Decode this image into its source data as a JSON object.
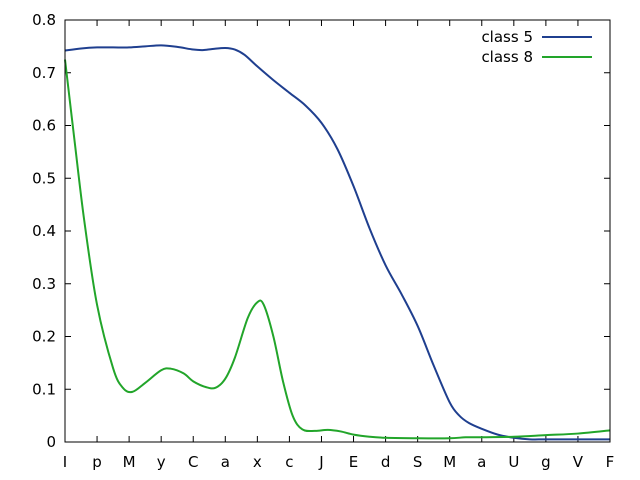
{
  "chart_data": {
    "type": "line",
    "title": "",
    "xlabel": "",
    "ylabel": "",
    "categories": [
      "I",
      "p",
      "M",
      "y",
      "C",
      "a",
      "x",
      "c",
      "J",
      "E",
      "d",
      "S",
      "M",
      "a",
      "U",
      "g",
      "V",
      "F"
    ],
    "y_ticks": [
      "0",
      "0.1",
      "0.2",
      "0.3",
      "0.4",
      "0.5",
      "0.6",
      "0.7",
      "0.8"
    ],
    "ylim": [
      0,
      0.8
    ],
    "grid": false,
    "legend_position": "top-right",
    "series": [
      {
        "name": "class 5",
        "color": "#1f3f8f",
        "values": [
          [
            0,
            0.742
          ],
          [
            0.5,
            0.746
          ],
          [
            1,
            0.748
          ],
          [
            1.5,
            0.748
          ],
          [
            2,
            0.748
          ],
          [
            2.5,
            0.75
          ],
          [
            3,
            0.752
          ],
          [
            3.5,
            0.749
          ],
          [
            4,
            0.744
          ],
          [
            4.3,
            0.743
          ],
          [
            4.6,
            0.745
          ],
          [
            5,
            0.747
          ],
          [
            5.3,
            0.744
          ],
          [
            5.6,
            0.734
          ],
          [
            6,
            0.712
          ],
          [
            6.5,
            0.686
          ],
          [
            7,
            0.662
          ],
          [
            7.5,
            0.638
          ],
          [
            8,
            0.605
          ],
          [
            8.5,
            0.555
          ],
          [
            9,
            0.485
          ],
          [
            9.5,
            0.405
          ],
          [
            10,
            0.335
          ],
          [
            10.5,
            0.28
          ],
          [
            11,
            0.22
          ],
          [
            11.5,
            0.145
          ],
          [
            12,
            0.075
          ],
          [
            12.3,
            0.05
          ],
          [
            12.6,
            0.036
          ],
          [
            13,
            0.025
          ],
          [
            13.5,
            0.014
          ],
          [
            14,
            0.008
          ],
          [
            14.5,
            0.005
          ],
          [
            15,
            0.005
          ],
          [
            16,
            0.005
          ],
          [
            17,
            0.005
          ]
        ]
      },
      {
        "name": "class 8",
        "color": "#22a52a",
        "values": [
          [
            0,
            0.725
          ],
          [
            0.3,
            0.57
          ],
          [
            0.6,
            0.42
          ],
          [
            1,
            0.26
          ],
          [
            1.5,
            0.14
          ],
          [
            1.8,
            0.103
          ],
          [
            2.1,
            0.095
          ],
          [
            2.5,
            0.112
          ],
          [
            3,
            0.136
          ],
          [
            3.3,
            0.139
          ],
          [
            3.7,
            0.13
          ],
          [
            4,
            0.115
          ],
          [
            4.4,
            0.104
          ],
          [
            4.7,
            0.103
          ],
          [
            5,
            0.12
          ],
          [
            5.3,
            0.16
          ],
          [
            5.7,
            0.235
          ],
          [
            6,
            0.265
          ],
          [
            6.2,
            0.26
          ],
          [
            6.5,
            0.2
          ],
          [
            6.8,
            0.115
          ],
          [
            7.1,
            0.05
          ],
          [
            7.4,
            0.024
          ],
          [
            7.8,
            0.021
          ],
          [
            8.2,
            0.023
          ],
          [
            8.6,
            0.02
          ],
          [
            9,
            0.014
          ],
          [
            9.5,
            0.01
          ],
          [
            10,
            0.008
          ],
          [
            11,
            0.007
          ],
          [
            12,
            0.007
          ],
          [
            12.5,
            0.009
          ],
          [
            13,
            0.009
          ],
          [
            14,
            0.01
          ],
          [
            15,
            0.013
          ],
          [
            16,
            0.016
          ],
          [
            17,
            0.022
          ]
        ]
      }
    ]
  }
}
